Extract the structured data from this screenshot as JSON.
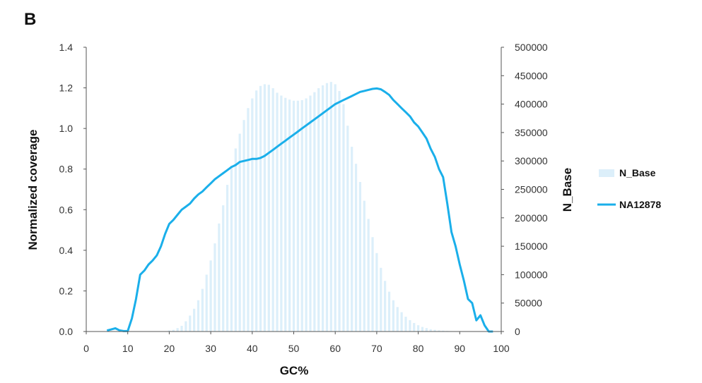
{
  "panel_label": "B",
  "chart_data": {
    "type": "bar+line",
    "xlabel": "GC%",
    "ylabel_left": "Normalized coverage",
    "ylabel_right": "N_Base",
    "xlim": [
      0,
      100
    ],
    "ylim_left": [
      0,
      1.4
    ],
    "ylim_right": [
      0,
      500000
    ],
    "x_ticks": [
      "0",
      "10",
      "20",
      "30",
      "40",
      "50",
      "60",
      "70",
      "80",
      "90",
      "100"
    ],
    "y_left_ticks": [
      "0.0",
      "0.2",
      "0.4",
      "0.6",
      "0.8",
      "1.0",
      "1.2",
      "1.4"
    ],
    "y_right_ticks": [
      "0",
      "50000",
      "100000",
      "150000",
      "200000",
      "250000",
      "300000",
      "350000",
      "400000",
      "450000",
      "500000"
    ],
    "legend_position": "right",
    "grid": false,
    "series": [
      {
        "name": "N_Base",
        "kind": "bar",
        "axis": "right",
        "color": "#dceffa",
        "x": [
          20,
          21,
          22,
          23,
          24,
          25,
          26,
          27,
          28,
          29,
          30,
          31,
          32,
          33,
          34,
          35,
          36,
          37,
          38,
          39,
          40,
          41,
          42,
          43,
          44,
          45,
          46,
          47,
          48,
          49,
          50,
          51,
          52,
          53,
          54,
          55,
          56,
          57,
          58,
          59,
          60,
          61,
          62,
          63,
          64,
          65,
          66,
          67,
          68,
          69,
          70,
          71,
          72,
          73,
          74,
          75,
          76,
          77,
          78,
          79,
          80,
          81,
          82,
          83,
          84,
          85,
          86,
          87,
          88,
          89
        ],
        "values": [
          2000,
          3000,
          6000,
          10000,
          18000,
          28000,
          40000,
          55000,
          75000,
          100000,
          125000,
          155000,
          190000,
          222000,
          258000,
          292000,
          322000,
          348000,
          372000,
          393000,
          410000,
          424000,
          432000,
          435000,
          434000,
          428000,
          420000,
          415000,
          411000,
          408000,
          406000,
          406000,
          407000,
          410000,
          415000,
          421000,
          428000,
          433000,
          437000,
          439000,
          435000,
          423000,
          400000,
          362000,
          325000,
          295000,
          263000,
          230000,
          198000,
          166000,
          138000,
          112000,
          89000,
          70000,
          55000,
          43000,
          34000,
          26000,
          20000,
          15000,
          11000,
          8000,
          6000,
          4000,
          3000,
          2000,
          1500,
          1000,
          700,
          400
        ]
      },
      {
        "name": "NA12878",
        "kind": "line",
        "axis": "left",
        "color": "#1aafea",
        "x": [
          5,
          6,
          7,
          8,
          9,
          10,
          11,
          12,
          13,
          14,
          15,
          16,
          17,
          18,
          19,
          20,
          21,
          22,
          23,
          24,
          25,
          26,
          27,
          28,
          29,
          30,
          31,
          32,
          33,
          34,
          35,
          36,
          37,
          38,
          39,
          40,
          41,
          42,
          43,
          44,
          45,
          46,
          47,
          48,
          49,
          50,
          51,
          52,
          53,
          54,
          55,
          56,
          57,
          58,
          59,
          60,
          61,
          62,
          63,
          64,
          65,
          66,
          67,
          68,
          69,
          70,
          71,
          72,
          73,
          74,
          75,
          76,
          77,
          78,
          79,
          80,
          81,
          82,
          83,
          84,
          85,
          86,
          87,
          88,
          89,
          90,
          91,
          92,
          93,
          94,
          95,
          96,
          97,
          98
        ],
        "values": [
          0.005,
          0.01,
          0.016,
          0.006,
          0.002,
          0.002,
          0.065,
          0.16,
          0.28,
          0.3,
          0.33,
          0.35,
          0.375,
          0.42,
          0.48,
          0.53,
          0.55,
          0.575,
          0.6,
          0.615,
          0.63,
          0.655,
          0.675,
          0.69,
          0.71,
          0.73,
          0.75,
          0.765,
          0.78,
          0.795,
          0.81,
          0.82,
          0.835,
          0.84,
          0.845,
          0.85,
          0.85,
          0.855,
          0.865,
          0.88,
          0.895,
          0.91,
          0.925,
          0.94,
          0.955,
          0.97,
          0.985,
          1.0,
          1.015,
          1.03,
          1.045,
          1.06,
          1.075,
          1.09,
          1.105,
          1.12,
          1.13,
          1.14,
          1.15,
          1.16,
          1.17,
          1.18,
          1.185,
          1.19,
          1.195,
          1.197,
          1.193,
          1.18,
          1.165,
          1.14,
          1.12,
          1.1,
          1.08,
          1.06,
          1.03,
          1.01,
          0.98,
          0.95,
          0.9,
          0.86,
          0.8,
          0.76,
          0.63,
          0.49,
          0.42,
          0.33,
          0.25,
          0.16,
          0.14,
          0.055,
          0.08,
          0.03,
          0.0,
          0.0
        ]
      }
    ]
  }
}
